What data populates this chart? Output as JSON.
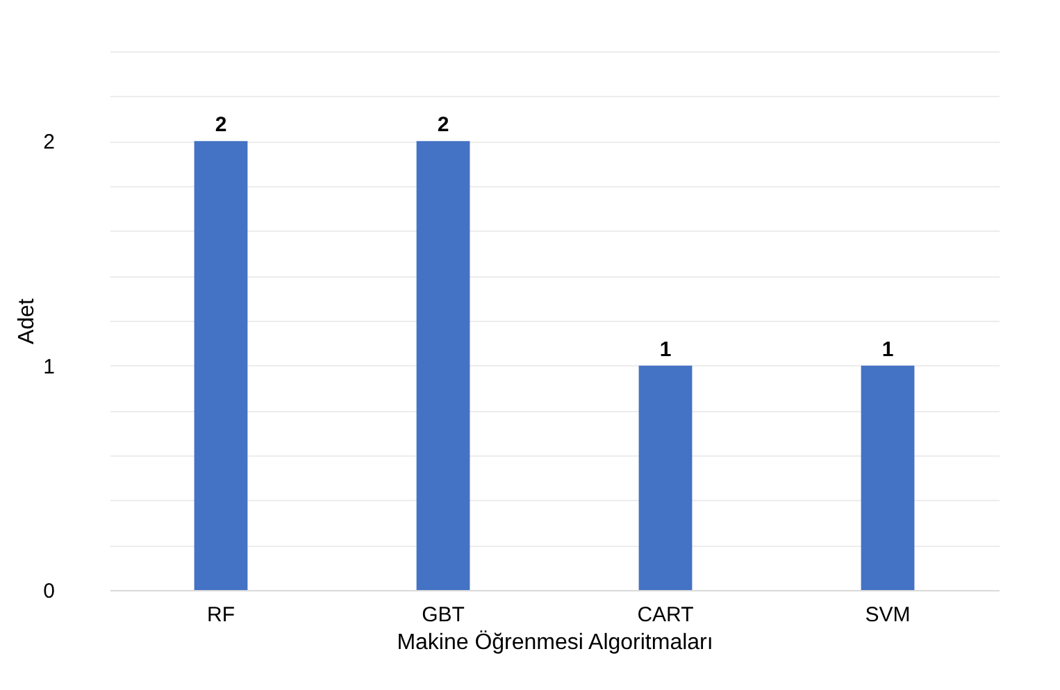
{
  "chart_data": {
    "type": "bar",
    "xlabel": "Makine Öğrenmesi Algoritmaları",
    "ylabel": "Adet",
    "categories": [
      "RF",
      "GBT",
      "CART",
      "SVM"
    ],
    "values": [
      2,
      2,
      1,
      1
    ],
    "color": "#4472c4",
    "ylim": [
      0,
      2.4
    ],
    "yticks": [
      0,
      {
        "value": 0.2,
        "label": null
      },
      {
        "value": 0.4,
        "label": null
      },
      {
        "value": 0.6,
        "label": null
      },
      {
        "value": 0.8,
        "label": null
      },
      1,
      {
        "value": 1.2,
        "label": null
      },
      {
        "value": 1.4,
        "label": null
      },
      {
        "value": 1.6,
        "label": null
      },
      {
        "value": 1.8,
        "label": null
      },
      2,
      {
        "value": 2.2,
        "label": null
      },
      {
        "value": 2.4,
        "label": null
      }
    ],
    "grid": true,
    "data_labels": true
  }
}
